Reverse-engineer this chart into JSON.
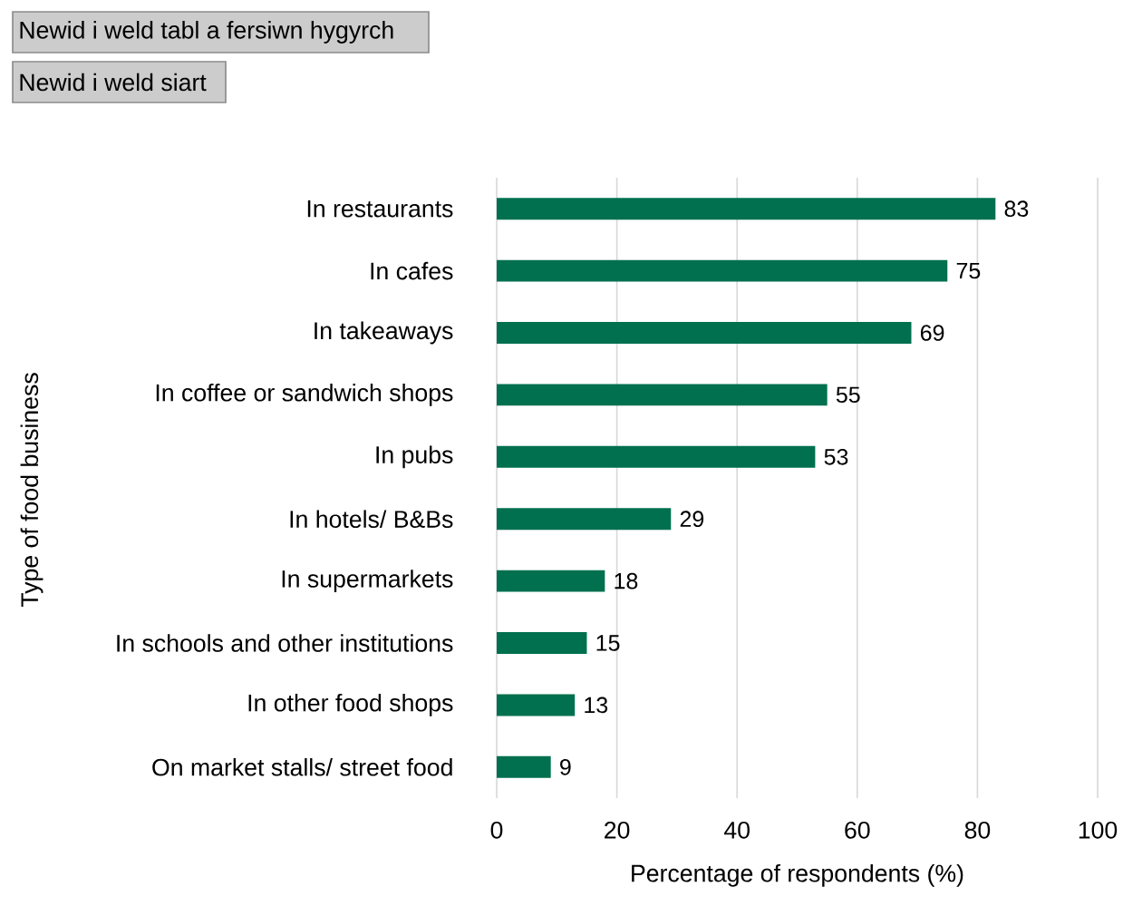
{
  "chart_data": {
    "type": "bar",
    "orientation": "horizontal",
    "xlabel": "Percentage of respondents (%)",
    "ylabel": "Type of food business",
    "categories": [
      "In restaurants",
      "In cafes",
      "In takeaways",
      "In coffee or sandwich shops",
      "In pubs",
      "In hotels/ B&Bs",
      "In supermarkets",
      "In schools and other institutions",
      "In other food shops",
      "On market stalls/ street food"
    ],
    "values": [
      83,
      75,
      69,
      55,
      53,
      29,
      18,
      15,
      13,
      9
    ],
    "color": "#00704f",
    "xlim": [
      0,
      100
    ],
    "xticks": [
      0,
      20,
      40,
      60,
      80,
      100
    ],
    "grid": "x",
    "data_labels": true,
    "annotations": [
      "Newid i weld tabl a fersiwn hygyrch",
      "Newid i weld siart"
    ]
  }
}
